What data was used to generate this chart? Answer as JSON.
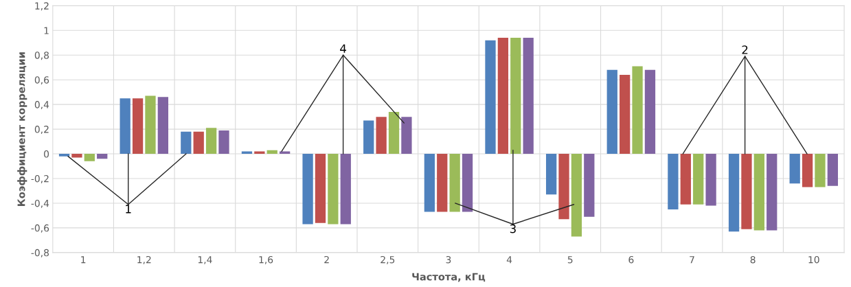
{
  "chart_data": {
    "type": "bar",
    "xlabel": "Частота, кГц",
    "ylabel": "Коэффициент корреляции",
    "categories": [
      "1",
      "1,2",
      "1,4",
      "1,6",
      "2",
      "2,5",
      "3",
      "4",
      "5",
      "6",
      "7",
      "8",
      "10"
    ],
    "series": [
      {
        "color": "#4f81bd",
        "values": [
          -0.02,
          0.45,
          0.18,
          0.02,
          -0.57,
          0.27,
          -0.47,
          0.92,
          -0.33,
          0.68,
          -0.45,
          -0.63,
          -0.24
        ]
      },
      {
        "color": "#c0504d",
        "values": [
          -0.03,
          0.45,
          0.18,
          0.02,
          -0.56,
          0.3,
          -0.47,
          0.94,
          -0.53,
          0.64,
          -0.41,
          -0.61,
          -0.27
        ]
      },
      {
        "color": "#9bbb59",
        "values": [
          -0.06,
          0.47,
          0.21,
          0.03,
          -0.57,
          0.34,
          -0.47,
          0.94,
          -0.67,
          0.71,
          -0.41,
          -0.62,
          -0.27
        ]
      },
      {
        "color": "#8064a2",
        "values": [
          -0.04,
          0.46,
          0.19,
          0.02,
          -0.57,
          0.3,
          -0.47,
          0.94,
          -0.51,
          0.68,
          -0.42,
          -0.62,
          -0.26
        ]
      }
    ],
    "ylim": [
      -0.8,
      1.2
    ],
    "yticks": [
      {
        "value": -0.8,
        "label": "-0,8"
      },
      {
        "value": -0.6,
        "label": "-0,6"
      },
      {
        "value": -0.4,
        "label": "-0,4"
      },
      {
        "value": -0.2,
        "label": "-0,2"
      },
      0,
      {
        "value": 0.2,
        "label": "0,2"
      },
      {
        "value": 0.4,
        "label": "0,4"
      },
      {
        "value": 0.6,
        "label": "0,6"
      },
      {
        "value": 0.8,
        "label": "0,8"
      },
      1,
      {
        "value": 1.2,
        "label": "1,2"
      }
    ],
    "grid": true,
    "legend": false,
    "annotations": [
      {
        "text": "1",
        "y": 0
      },
      {
        "text": "4",
        "y": 0
      },
      {
        "text": "3",
        "y": 0.03
      },
      {
        "text": "2",
        "y": 0
      }
    ]
  }
}
